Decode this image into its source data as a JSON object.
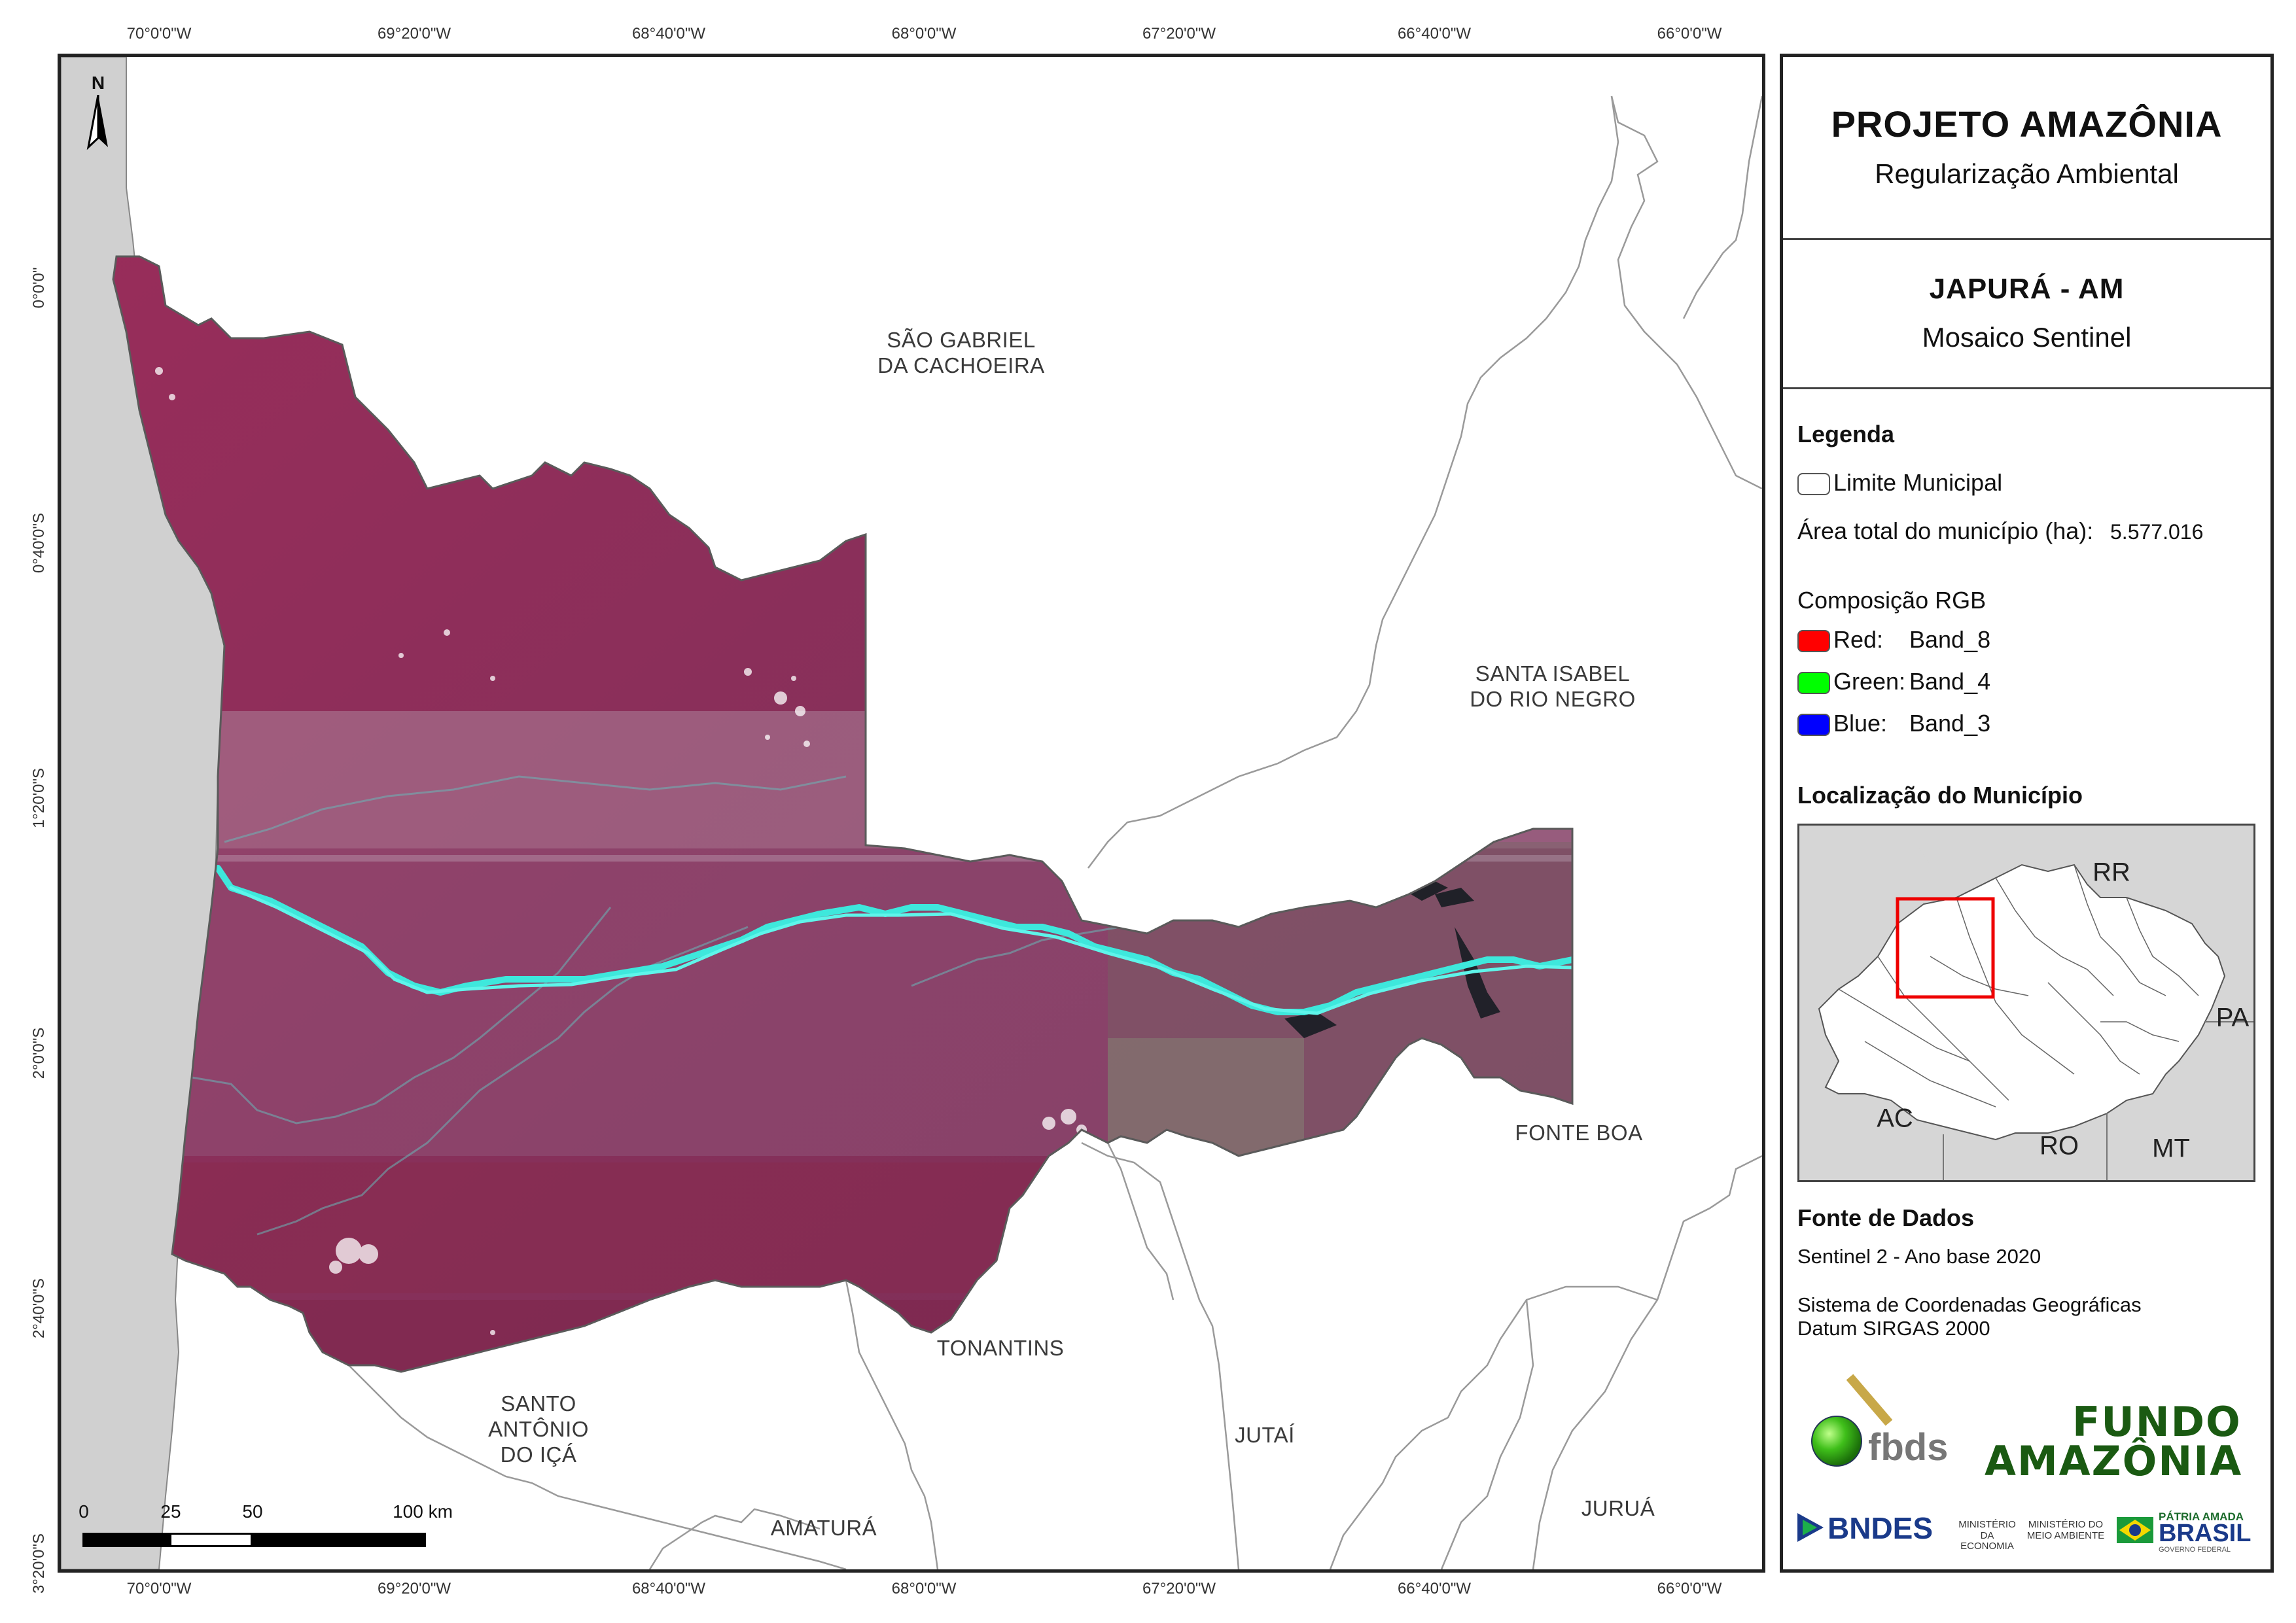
{
  "coordinates": {
    "top": [
      "70°0'0\"W",
      "69°20'0\"W",
      "68°40'0\"W",
      "68°0'0\"W",
      "67°20'0\"W",
      "66°40'0\"W",
      "66°0'0\"W"
    ],
    "bottom": [
      "70°0'0\"W",
      "69°20'0\"W",
      "68°40'0\"W",
      "68°0'0\"W",
      "67°20'0\"W",
      "66°40'0\"W",
      "66°0'0\"W"
    ],
    "left": [
      "0°0'0\"",
      "0°40'0\"S",
      "1°20'0\"S",
      "2°0'0\"S",
      "2°40'0\"S",
      "3°20'0\"S"
    ]
  },
  "map": {
    "north_label": "N",
    "municipalities": [
      {
        "name": "SÃO GABRIEL\nDA CACHOEIRA"
      },
      {
        "name": "SANTA ISABEL\nDO RIO NEGRO"
      },
      {
        "name": "FONTE BOA"
      },
      {
        "name": "TONANTINS"
      },
      {
        "name": "SANTO\nANTÔNIO\nDO IÇÁ"
      },
      {
        "name": "JUTAÍ"
      },
      {
        "name": "AMATURÁ"
      },
      {
        "name": "JURUÁ"
      }
    ],
    "scale": {
      "ticks": [
        "0",
        "25",
        "50",
        "100 km"
      ]
    },
    "colors": {
      "satellite": "#8a2a55",
      "river": "#3ee8dc",
      "outside": "#d0d0d0"
    }
  },
  "panel": {
    "title": "PROJETO AMAZÔNIA",
    "subtitle": "Regularização Ambiental",
    "municipality": "JAPURÁ - AM",
    "product": "Mosaico Sentinel",
    "legend": {
      "heading": "Legenda",
      "limit_label": "Limite Municipal",
      "area_label": "Área total do município (ha):",
      "area_value": "5.577.016",
      "rgb_heading": "Composição RGB",
      "bands": [
        {
          "channel": "Red:",
          "band": "Band_8",
          "color": "#ff0000"
        },
        {
          "channel": "Green:",
          "band": "Band_4",
          "color": "#00ff00"
        },
        {
          "channel": "Blue:",
          "band": "Band_3",
          "color": "#0000ff"
        }
      ]
    },
    "location": {
      "heading": "Localização do Município",
      "states": [
        "RR",
        "PA",
        "AC",
        "RO",
        "MT"
      ]
    },
    "sources": {
      "heading": "Fonte de Dados",
      "line1": "Sentinel 2 - Ano base 2020",
      "line2": "Sistema de Coordenadas Geográficas",
      "line3": "Datum SIRGAS 2000"
    },
    "logos": {
      "fbds": "fbds",
      "fundo1": "FUNDO",
      "fundo2": "AMAZÔNIA",
      "bndes": "BNDES",
      "min_econ": "MINISTÉRIO DA\nECONOMIA",
      "min_amb": "MINISTÉRIO DO\nMEIO AMBIENTE",
      "patria": "PÁTRIA AMADA",
      "brasil": "BRASIL",
      "gov": "GOVERNO FEDERAL"
    }
  }
}
